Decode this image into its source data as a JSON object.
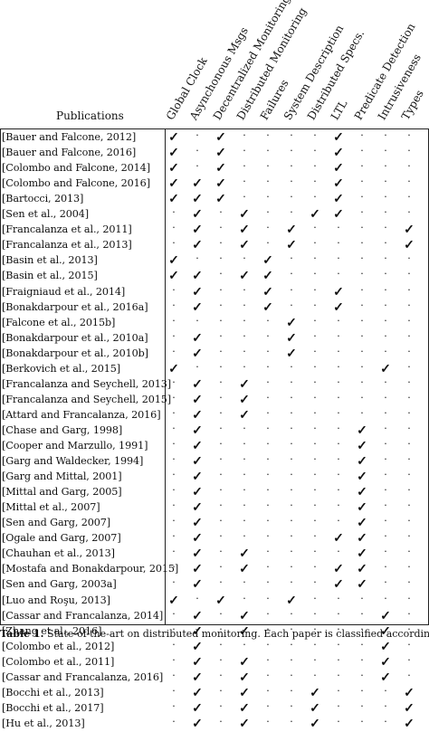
{
  "table": {
    "publications_header": "Publications",
    "columns": [
      "Global Clock",
      "Asynchonous Msgs",
      "Decentralized Monitoring",
      "Distributed Monitoring",
      "Failures",
      "System Description",
      "Distributed Specs.",
      "LTL",
      "Predicate Detection",
      "Intrusiveness",
      "Types"
    ],
    "rows": [
      {
        "pub": "[Bauer and Falcone, 2012]",
        "v": [
          1,
          0,
          1,
          0,
          0,
          0,
          0,
          1,
          0,
          0,
          0
        ]
      },
      {
        "pub": "[Bauer and Falcone, 2016]",
        "v": [
          1,
          0,
          1,
          0,
          0,
          0,
          0,
          1,
          0,
          0,
          0
        ]
      },
      {
        "pub": "[Colombo and Falcone, 2014]",
        "v": [
          1,
          0,
          1,
          0,
          0,
          0,
          0,
          1,
          0,
          0,
          0
        ]
      },
      {
        "pub": "[Colombo and Falcone, 2016]",
        "v": [
          1,
          1,
          1,
          0,
          0,
          0,
          0,
          1,
          0,
          0,
          0
        ]
      },
      {
        "pub": "[Bartocci, 2013]",
        "v": [
          1,
          1,
          1,
          0,
          0,
          0,
          0,
          1,
          0,
          0,
          0
        ]
      },
      {
        "pub": "[Sen et al., 2004]",
        "v": [
          0,
          1,
          0,
          1,
          0,
          0,
          1,
          1,
          0,
          0,
          0
        ]
      },
      {
        "pub": "[Francalanza et al., 2011]",
        "v": [
          0,
          1,
          0,
          1,
          0,
          1,
          0,
          0,
          0,
          0,
          1
        ]
      },
      {
        "pub": "[Francalanza et al., 2013]",
        "v": [
          0,
          1,
          0,
          1,
          0,
          1,
          0,
          0,
          0,
          0,
          1
        ]
      },
      {
        "pub": "[Basin et al., 2013]",
        "v": [
          1,
          0,
          0,
          0,
          1,
          0,
          0,
          0,
          0,
          0,
          0
        ]
      },
      {
        "pub": "[Basin et al., 2015]",
        "v": [
          1,
          1,
          0,
          1,
          1,
          0,
          0,
          0,
          0,
          0,
          0
        ]
      },
      {
        "pub": "[Fraigniaud et al., 2014]",
        "v": [
          0,
          1,
          0,
          0,
          1,
          0,
          0,
          1,
          0,
          0,
          0
        ]
      },
      {
        "pub": "[Bonakdarpour et al., 2016a]",
        "v": [
          0,
          1,
          0,
          0,
          1,
          0,
          0,
          1,
          0,
          0,
          0
        ]
      },
      {
        "pub": "[Falcone et al., 2015b]",
        "v": [
          0,
          0,
          0,
          0,
          0,
          1,
          0,
          0,
          0,
          0,
          0
        ]
      },
      {
        "pub": "[Bonakdarpour et al., 2010a]",
        "v": [
          0,
          1,
          0,
          0,
          0,
          1,
          0,
          0,
          0,
          0,
          0
        ]
      },
      {
        "pub": "[Bonakdarpour et al., 2010b]",
        "v": [
          0,
          1,
          0,
          0,
          0,
          1,
          0,
          0,
          0,
          0,
          0
        ]
      },
      {
        "pub": "[Berkovich et al., 2015]",
        "v": [
          1,
          0,
          0,
          0,
          0,
          0,
          0,
          0,
          0,
          1,
          0
        ]
      },
      {
        "pub": "[Francalanza and Seychell, 2013]",
        "v": [
          0,
          1,
          0,
          1,
          0,
          0,
          0,
          0,
          0,
          0,
          0
        ]
      },
      {
        "pub": "[Francalanza and Seychell, 2015]",
        "v": [
          0,
          1,
          0,
          1,
          0,
          0,
          0,
          0,
          0,
          0,
          0
        ]
      },
      {
        "pub": "[Attard and Francalanza, 2016]",
        "v": [
          0,
          1,
          0,
          1,
          0,
          0,
          0,
          0,
          0,
          0,
          0
        ]
      },
      {
        "pub": "[Chase and Garg, 1998]",
        "v": [
          0,
          1,
          0,
          0,
          0,
          0,
          0,
          0,
          1,
          0,
          0
        ]
      },
      {
        "pub": "[Cooper and Marzullo, 1991]",
        "v": [
          0,
          1,
          0,
          0,
          0,
          0,
          0,
          0,
          1,
          0,
          0
        ]
      },
      {
        "pub": "[Garg and Waldecker, 1994]",
        "v": [
          0,
          1,
          0,
          0,
          0,
          0,
          0,
          0,
          1,
          0,
          0
        ]
      },
      {
        "pub": "[Garg and Mittal, 2001]",
        "v": [
          0,
          1,
          0,
          0,
          0,
          0,
          0,
          0,
          1,
          0,
          0
        ]
      },
      {
        "pub": "[Mittal and Garg, 2005]",
        "v": [
          0,
          1,
          0,
          0,
          0,
          0,
          0,
          0,
          1,
          0,
          0
        ]
      },
      {
        "pub": "[Mittal et al., 2007]",
        "v": [
          0,
          1,
          0,
          0,
          0,
          0,
          0,
          0,
          1,
          0,
          0
        ]
      },
      {
        "pub": "[Sen and Garg, 2007]",
        "v": [
          0,
          1,
          0,
          0,
          0,
          0,
          0,
          0,
          1,
          0,
          0
        ]
      },
      {
        "pub": "[Ogale and Garg, 2007]",
        "v": [
          0,
          1,
          0,
          0,
          0,
          0,
          0,
          1,
          1,
          0,
          0
        ]
      },
      {
        "pub": "[Chauhan et al., 2013]",
        "v": [
          0,
          1,
          0,
          1,
          0,
          0,
          0,
          0,
          1,
          0,
          0
        ]
      },
      {
        "pub": "[Mostafa and Bonakdarpour, 2015]",
        "v": [
          0,
          1,
          0,
          1,
          0,
          0,
          0,
          1,
          1,
          0,
          0
        ]
      },
      {
        "pub": "[Sen and Garg, 2003a]",
        "v": [
          0,
          1,
          0,
          0,
          0,
          0,
          0,
          1,
          1,
          0,
          0
        ]
      },
      {
        "pub": "[Luo and Roşu, 2013]",
        "v": [
          1,
          0,
          1,
          0,
          0,
          1,
          0,
          0,
          0,
          0,
          0
        ]
      },
      {
        "pub": "[Cassar and Francalanza, 2014]",
        "v": [
          0,
          1,
          0,
          1,
          0,
          0,
          0,
          0,
          0,
          1,
          0
        ]
      },
      {
        "pub": "[Zhang et al., 2016]",
        "v": [
          0,
          1,
          0,
          1,
          0,
          0,
          0,
          0,
          0,
          1,
          0
        ]
      },
      {
        "pub": "[Colombo et al., 2012]",
        "v": [
          0,
          1,
          0,
          0,
          0,
          0,
          0,
          0,
          0,
          1,
          0
        ]
      },
      {
        "pub": "[Colombo et al., 2011]",
        "v": [
          0,
          1,
          0,
          1,
          0,
          0,
          0,
          0,
          0,
          1,
          0
        ]
      },
      {
        "pub": "[Cassar and Francalanza, 2016]",
        "v": [
          0,
          1,
          0,
          1,
          0,
          0,
          0,
          0,
          0,
          1,
          0
        ]
      },
      {
        "pub": "[Bocchi et al., 2013]",
        "v": [
          0,
          1,
          0,
          1,
          0,
          0,
          1,
          0,
          0,
          0,
          1
        ]
      },
      {
        "pub": "[Bocchi et al., 2017]",
        "v": [
          0,
          1,
          0,
          1,
          0,
          0,
          1,
          0,
          0,
          0,
          1
        ]
      },
      {
        "pub": "[Hu et al., 2013]",
        "v": [
          0,
          1,
          0,
          1,
          0,
          0,
          1,
          0,
          0,
          0,
          1
        ]
      }
    ],
    "check_symbol": "✓",
    "empty_symbol": "·"
  },
  "caption": {
    "label": "Table 1.",
    "text": " State-of-the-art on distributed monitoring. Each paper is classified according"
  }
}
